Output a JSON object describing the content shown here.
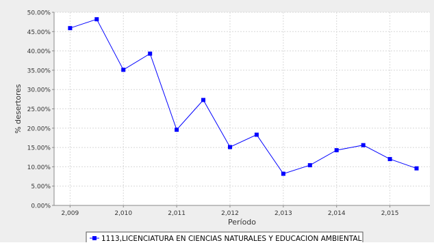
{
  "chart_data": {
    "type": "line",
    "title": "",
    "xlabel": "Período",
    "ylabel": "% desertores",
    "x_tick_labels": [
      "2,009",
      "2,010",
      "2,011",
      "2,012",
      "2,013",
      "2,014",
      "2,015"
    ],
    "x_ticks": [
      2009,
      2010,
      2011,
      2012,
      2013,
      2014,
      2015
    ],
    "xlim": [
      2008.7,
      2015.75
    ],
    "ylim": [
      0,
      50
    ],
    "y_tick_labels": [
      "0.00%",
      "5.00%",
      "10.00%",
      "15.00%",
      "20.00%",
      "25.00%",
      "30.00%",
      "35.00%",
      "40.00%",
      "45.00%",
      "50.00%"
    ],
    "y_ticks": [
      0,
      5,
      10,
      15,
      20,
      25,
      30,
      35,
      40,
      45,
      50
    ],
    "grid": true,
    "legend_position": "bottom",
    "series": [
      {
        "name": "1113,LICENCIATURA EN CIENCIAS NATURALES Y EDUCACION AMBIENTAL",
        "color": "#0000ff",
        "x": [
          2009,
          2009.5,
          2010,
          2010.5,
          2011,
          2011.5,
          2012,
          2012.5,
          2013,
          2013.5,
          2014,
          2014.5,
          2015,
          2015.5
        ],
        "values": [
          45.9,
          48.2,
          35.1,
          39.3,
          19.6,
          27.3,
          15.1,
          18.3,
          8.2,
          10.4,
          14.3,
          15.6,
          12.0,
          9.6
        ]
      }
    ]
  },
  "colors": {
    "plot_background": "#ffffff",
    "outer_background": "#eeeeee",
    "grid": "#d8d8d8",
    "axis": "#888888",
    "text": "#333333"
  }
}
